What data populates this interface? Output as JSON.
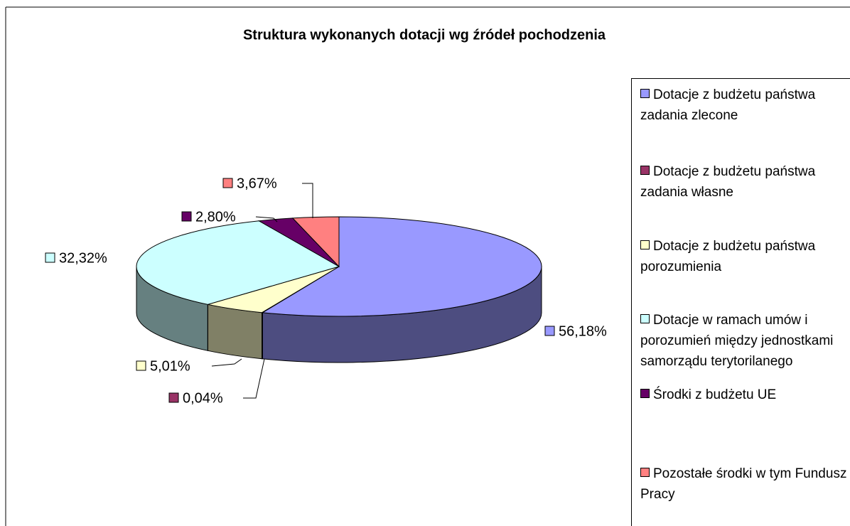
{
  "chart_data": {
    "type": "pie3d",
    "title": "Struktura wykonanych dotacji  wg źródeł pochodzenia",
    "categories": [
      "Dotacje z budżetu państwa zadania zlecone",
      "Dotacje z budżetu państwa zadania własne",
      "Dotacje z budżetu państwa porozumienia",
      "Dotacje w ramach umów i  porozumień między jednostkami samorządu terytorilanego",
      "Środki z budżetu UE",
      "Pozostałe środki w tym Fundusz Pracy"
    ],
    "values": [
      56.18,
      0.04,
      5.01,
      32.32,
      2.8,
      3.67
    ],
    "value_labels": [
      "56,18%",
      "0,04%",
      "5,01%",
      "32,32%",
      "2,80%",
      "3,67%"
    ],
    "colors": [
      "#9999ff",
      "#993366",
      "#ffffcc",
      "#ccffff",
      "#660066",
      "#ff8080"
    ],
    "legend": "right"
  }
}
